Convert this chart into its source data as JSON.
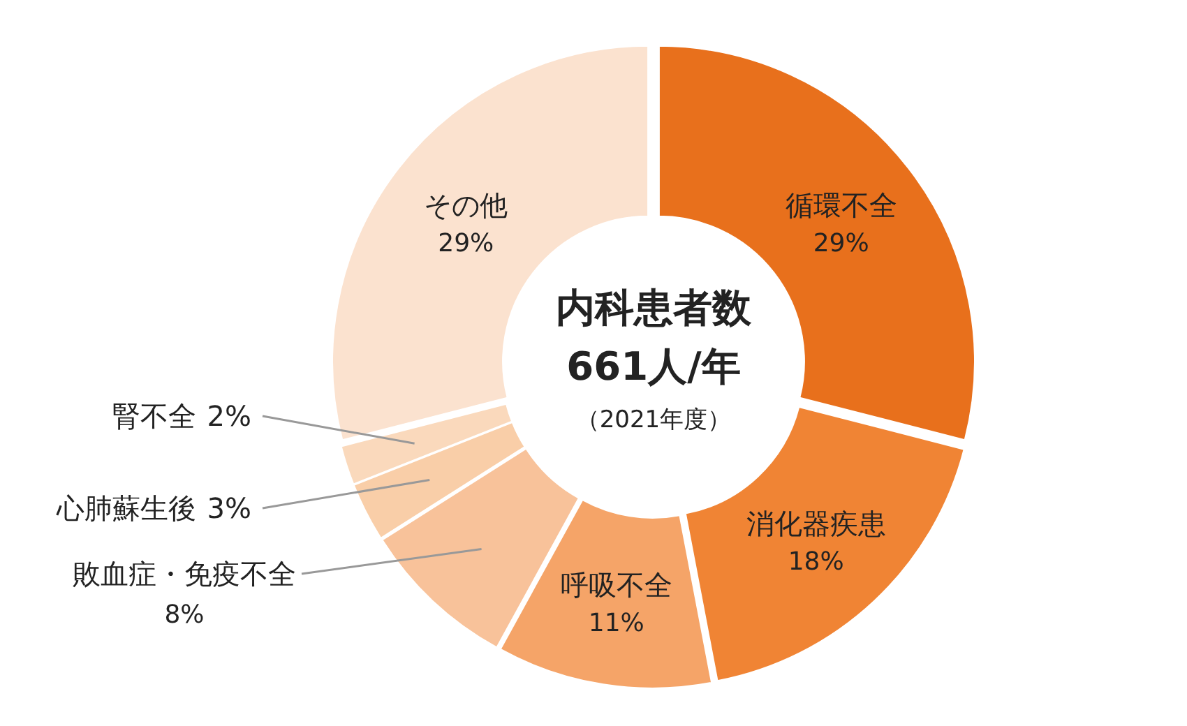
{
  "chart_data": {
    "type": "donut",
    "title": "内科患者数",
    "subtitle": "661人/年",
    "annotations": [
      "（2021年度）"
    ],
    "categories": [
      "循環不全",
      "消化器疾患",
      "呼吸不全",
      "敗血症・免疫不全",
      "心肺蘇生後",
      "腎不全",
      "その他"
    ],
    "values": [
      29,
      18,
      11,
      8,
      3,
      2,
      29
    ],
    "colors": [
      "#e8701c",
      "#f08434",
      "#f5a468",
      "#f8c29a",
      "#f9cea8",
      "#fad9bc",
      "#fbe2cf"
    ],
    "value_labels": [
      "29%",
      "18%",
      "11%",
      "8%",
      "3%",
      "2%",
      "29%"
    ]
  }
}
